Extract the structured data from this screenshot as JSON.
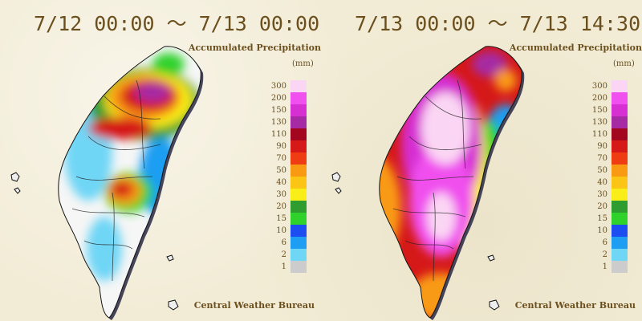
{
  "panels": [
    {
      "period": "7/12 00:00 ～ 7/13 00:00",
      "title": "Accumulated Precipitation",
      "unit": "(mm)",
      "credit": "Central Weather Bureau"
    },
    {
      "period": "7/13 00:00 ～ 7/13 14:30",
      "title": "Accumulated Precipitation",
      "unit": "(mm)",
      "credit": "Central Weather Bureau"
    }
  ],
  "legend": [
    {
      "label": "300",
      "color": "#fbd6f4"
    },
    {
      "label": "200",
      "color": "#f050ee"
    },
    {
      "label": "150",
      "color": "#d62fd2"
    },
    {
      "label": "130",
      "color": "#a62aa4"
    },
    {
      "label": "110",
      "color": "#a3061f"
    },
    {
      "label": "90",
      "color": "#d51818"
    },
    {
      "label": "70",
      "color": "#f03c12"
    },
    {
      "label": "50",
      "color": "#f99a13"
    },
    {
      "label": "40",
      "color": "#fbc516"
    },
    {
      "label": "30",
      "color": "#f9ee18"
    },
    {
      "label": "20",
      "color": "#2f9c2f"
    },
    {
      "label": "15",
      "color": "#2fd22b"
    },
    {
      "label": "10",
      "color": "#1b4df0"
    },
    {
      "label": "6",
      "color": "#1d9ef2"
    },
    {
      "label": "2",
      "color": "#6fd6f6"
    },
    {
      "label": "1",
      "color": "#cccccc"
    }
  ]
}
